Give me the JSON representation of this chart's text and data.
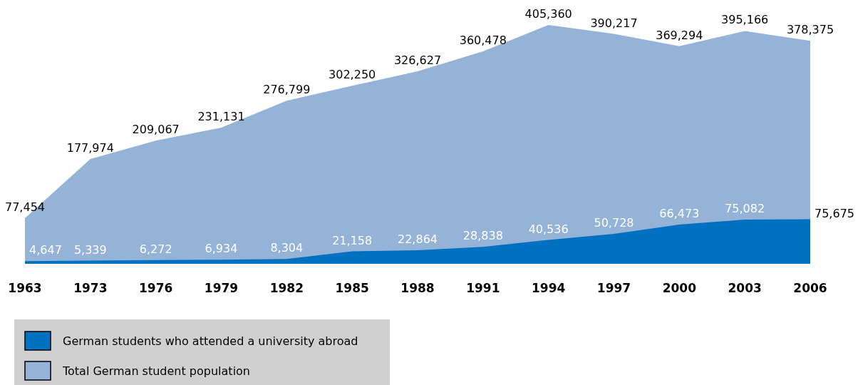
{
  "chart_data": {
    "type": "area",
    "categories": [
      "1963",
      "1973",
      "1976",
      "1979",
      "1982",
      "1985",
      "1988",
      "1991",
      "1994",
      "1997",
      "2000",
      "2003",
      "2006"
    ],
    "series": [
      {
        "name": "German students who attended a university abroad",
        "color": "#0070c0",
        "values": [
          4647,
          5339,
          6272,
          6934,
          8304,
          21158,
          22864,
          28838,
          40536,
          50728,
          66473,
          75082,
          75675
        ],
        "value_labels": [
          "4,647",
          "5,339",
          "6,272",
          "6,934",
          "8,304",
          "21,158",
          "22,864",
          "28,838",
          "40,536",
          "50,728",
          "66,473",
          "75,082",
          "75,675"
        ]
      },
      {
        "name": "Total German student population",
        "color": "#95b3d7",
        "values": [
          77454,
          177974,
          209067,
          231131,
          276799,
          302250,
          326627,
          360478,
          405360,
          390217,
          369294,
          395166,
          378375
        ],
        "value_labels": [
          "77,454",
          "177,974",
          "209,067",
          "231,131",
          "276,799",
          "302,250",
          "326,627",
          "360,478",
          "405,360",
          "390,217",
          "369,294",
          "395,166",
          "378,375"
        ]
      }
    ],
    "tick_labels": "x",
    "legend": "bottom left"
  }
}
